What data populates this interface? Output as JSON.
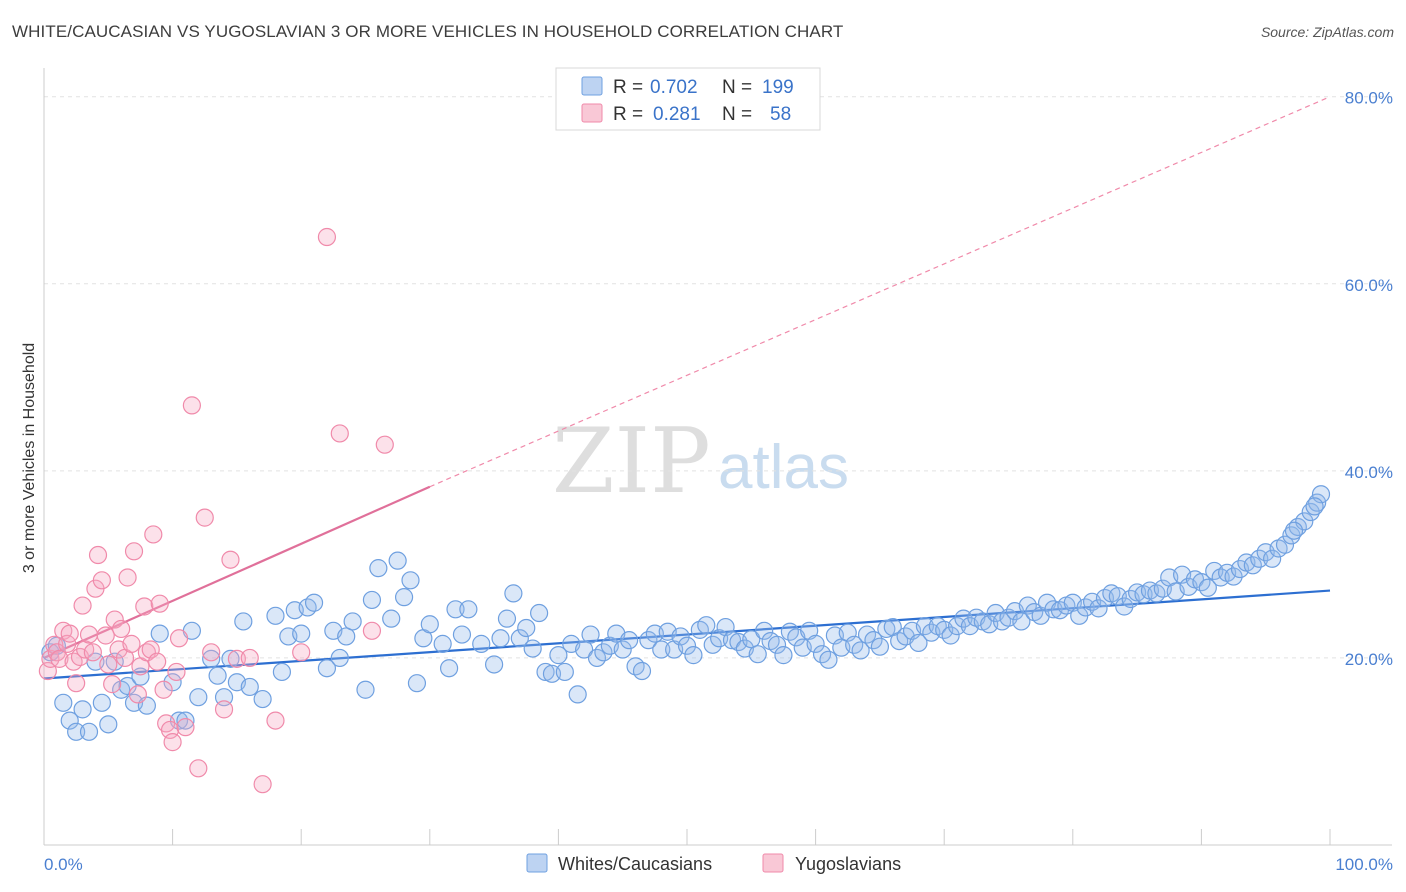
{
  "title": "WHITE/CAUCASIAN VS YUGOSLAVIAN 3 OR MORE VEHICLES IN HOUSEHOLD CORRELATION CHART",
  "source": "Source: ZipAtlas.com",
  "watermark": {
    "zip": "ZIP",
    "atlas": "atlas"
  },
  "legend": {
    "rows": [
      {
        "r_label": "R =",
        "r": "0.702",
        "n_label": "N =",
        "n": "199",
        "color": "#6fa0e0"
      },
      {
        "r_label": "R =",
        "r": "0.281",
        "n_label": "N =",
        "n": "58",
        "color": "#f08aaa"
      }
    ]
  },
  "bottom_legend": [
    {
      "label": "Whites/Caucasians",
      "color": "#6fa0e0"
    },
    {
      "label": "Yugoslavians",
      "color": "#f08aaa"
    }
  ],
  "chart_data": {
    "type": "scatter",
    "title": "WHITE/CAUCASIAN VS YUGOSLAVIAN 3 OR MORE VEHICLES IN HOUSEHOLD CORRELATION CHART",
    "xlabel": "",
    "ylabel": "3 or more Vehicles in Household",
    "xlim": [
      0,
      100
    ],
    "ylim": [
      0,
      82
    ],
    "x_tick_labels": [
      "0.0%",
      "100.0%"
    ],
    "y_ticks": [
      20,
      40,
      60,
      80
    ],
    "y_tick_labels": [
      "20.0%",
      "40.0%",
      "60.0%",
      "80.0%"
    ],
    "grid": true,
    "series": [
      {
        "name": "Whites/Caucasians",
        "color": "#6fa0e0",
        "trend": {
          "x": [
            0,
            100
          ],
          "y": [
            17.8,
            27.2
          ],
          "style": "solid"
        },
        "points": [
          [
            0.5,
            20.6
          ],
          [
            1.0,
            21.3
          ],
          [
            1.5,
            15.2
          ],
          [
            2.0,
            13.3
          ],
          [
            2.5,
            12.1
          ],
          [
            3.0,
            14.5
          ],
          [
            3.5,
            12.1
          ],
          [
            4.0,
            19.6
          ],
          [
            4.5,
            15.2
          ],
          [
            5.0,
            12.9
          ],
          [
            5.5,
            19.6
          ],
          [
            6.0,
            16.6
          ],
          [
            6.5,
            17.0
          ],
          [
            7.0,
            15.2
          ],
          [
            7.5,
            18.0
          ],
          [
            8.0,
            14.9
          ],
          [
            9.0,
            22.6
          ],
          [
            10.0,
            17.4
          ],
          [
            10.5,
            13.3
          ],
          [
            11.0,
            13.3
          ],
          [
            11.5,
            22.9
          ],
          [
            12.0,
            15.8
          ],
          [
            13.0,
            19.9
          ],
          [
            13.5,
            18.1
          ],
          [
            14.0,
            15.8
          ],
          [
            14.5,
            19.9
          ],
          [
            15.0,
            17.4
          ],
          [
            15.5,
            23.9
          ],
          [
            16.0,
            16.9
          ],
          [
            17.0,
            15.6
          ],
          [
            18.0,
            24.5
          ],
          [
            18.5,
            18.5
          ],
          [
            19.0,
            22.3
          ],
          [
            19.5,
            25.1
          ],
          [
            20.0,
            22.6
          ],
          [
            20.5,
            25.4
          ],
          [
            21.0,
            25.9
          ],
          [
            22.0,
            18.9
          ],
          [
            22.5,
            22.9
          ],
          [
            23.0,
            20.0
          ],
          [
            23.5,
            22.3
          ],
          [
            24.0,
            23.9
          ],
          [
            25.0,
            16.6
          ],
          [
            25.5,
            26.2
          ],
          [
            26.0,
            29.6
          ],
          [
            27.0,
            24.2
          ],
          [
            27.5,
            30.4
          ],
          [
            28.0,
            26.5
          ],
          [
            28.5,
            28.3
          ],
          [
            29.0,
            17.3
          ],
          [
            29.5,
            22.1
          ],
          [
            30.0,
            23.6
          ],
          [
            31.0,
            21.5
          ],
          [
            31.5,
            18.9
          ],
          [
            32.0,
            25.2
          ],
          [
            32.5,
            22.5
          ],
          [
            33.0,
            25.2
          ],
          [
            34.0,
            21.5
          ],
          [
            35.0,
            19.3
          ],
          [
            35.5,
            22.1
          ],
          [
            36.0,
            24.2
          ],
          [
            36.5,
            26.9
          ],
          [
            37.0,
            22.1
          ],
          [
            37.5,
            23.2
          ],
          [
            38.0,
            21.0
          ],
          [
            38.5,
            24.8
          ],
          [
            39.0,
            18.5
          ],
          [
            39.5,
            18.3
          ],
          [
            40.0,
            20.3
          ],
          [
            40.5,
            18.5
          ],
          [
            41.0,
            21.5
          ],
          [
            41.5,
            16.1
          ],
          [
            42.0,
            20.9
          ],
          [
            42.5,
            22.5
          ],
          [
            43.0,
            20.0
          ],
          [
            43.5,
            20.6
          ],
          [
            44.0,
            21.3
          ],
          [
            44.5,
            22.6
          ],
          [
            45.0,
            20.9
          ],
          [
            45.5,
            21.9
          ],
          [
            46.0,
            19.1
          ],
          [
            46.5,
            18.6
          ],
          [
            47.0,
            21.9
          ],
          [
            47.5,
            22.6
          ],
          [
            48.0,
            20.9
          ],
          [
            48.5,
            22.8
          ],
          [
            49.0,
            20.9
          ],
          [
            49.5,
            22.3
          ],
          [
            50.0,
            21.3
          ],
          [
            50.5,
            20.3
          ],
          [
            51.0,
            23.0
          ],
          [
            51.5,
            23.5
          ],
          [
            52.0,
            21.4
          ],
          [
            52.5,
            22.1
          ],
          [
            53.0,
            23.3
          ],
          [
            53.5,
            21.9
          ],
          [
            54.0,
            21.7
          ],
          [
            54.5,
            21.0
          ],
          [
            55.0,
            22.0
          ],
          [
            55.5,
            20.4
          ],
          [
            56.0,
            22.9
          ],
          [
            56.5,
            21.8
          ],
          [
            57.0,
            21.4
          ],
          [
            57.5,
            20.3
          ],
          [
            58.0,
            22.8
          ],
          [
            58.5,
            22.2
          ],
          [
            59.0,
            21.1
          ],
          [
            59.5,
            22.9
          ],
          [
            60.0,
            21.5
          ],
          [
            60.5,
            20.4
          ],
          [
            61.0,
            19.8
          ],
          [
            61.5,
            22.4
          ],
          [
            62.0,
            21.1
          ],
          [
            62.5,
            22.7
          ],
          [
            63.0,
            21.4
          ],
          [
            63.5,
            20.8
          ],
          [
            64.0,
            22.5
          ],
          [
            64.5,
            21.9
          ],
          [
            65.0,
            21.2
          ],
          [
            65.5,
            23.1
          ],
          [
            66.0,
            23.3
          ],
          [
            66.5,
            21.8
          ],
          [
            67.0,
            22.3
          ],
          [
            67.5,
            22.9
          ],
          [
            68.0,
            21.6
          ],
          [
            68.5,
            23.4
          ],
          [
            69.0,
            22.7
          ],
          [
            69.5,
            23.4
          ],
          [
            70.0,
            23.0
          ],
          [
            70.5,
            22.4
          ],
          [
            71.0,
            23.4
          ],
          [
            71.5,
            24.2
          ],
          [
            72.0,
            23.4
          ],
          [
            72.5,
            24.3
          ],
          [
            73.0,
            23.9
          ],
          [
            73.5,
            23.6
          ],
          [
            74.0,
            24.8
          ],
          [
            74.5,
            23.9
          ],
          [
            75.0,
            24.3
          ],
          [
            75.5,
            25.0
          ],
          [
            76.0,
            23.9
          ],
          [
            76.5,
            25.6
          ],
          [
            77.0,
            24.9
          ],
          [
            77.5,
            24.5
          ],
          [
            78.0,
            25.9
          ],
          [
            78.5,
            25.2
          ],
          [
            79.0,
            25.1
          ],
          [
            79.5,
            25.6
          ],
          [
            80.0,
            25.9
          ],
          [
            80.5,
            24.5
          ],
          [
            81.0,
            25.4
          ],
          [
            81.5,
            26.0
          ],
          [
            82.0,
            25.3
          ],
          [
            82.5,
            26.4
          ],
          [
            83.0,
            26.9
          ],
          [
            83.5,
            26.6
          ],
          [
            84.0,
            25.5
          ],
          [
            84.5,
            26.3
          ],
          [
            85.0,
            27.0
          ],
          [
            85.5,
            26.8
          ],
          [
            86.0,
            27.2
          ],
          [
            86.5,
            26.9
          ],
          [
            87.0,
            27.4
          ],
          [
            87.5,
            28.6
          ],
          [
            88.0,
            27.1
          ],
          [
            88.5,
            28.9
          ],
          [
            89.0,
            27.6
          ],
          [
            89.5,
            28.4
          ],
          [
            90.0,
            28.1
          ],
          [
            90.5,
            27.5
          ],
          [
            91.0,
            29.3
          ],
          [
            91.5,
            28.6
          ],
          [
            92.0,
            29.1
          ],
          [
            92.5,
            28.7
          ],
          [
            93.0,
            29.5
          ],
          [
            93.5,
            30.2
          ],
          [
            94.0,
            29.9
          ],
          [
            94.5,
            30.6
          ],
          [
            95.0,
            31.3
          ],
          [
            95.5,
            30.6
          ],
          [
            96.0,
            31.7
          ],
          [
            96.5,
            32.1
          ],
          [
            97.0,
            33.1
          ],
          [
            97.5,
            34.0
          ],
          [
            98.0,
            34.6
          ],
          [
            98.5,
            35.6
          ],
          [
            99.0,
            36.6
          ],
          [
            99.3,
            37.5
          ],
          [
            98.8,
            36.2
          ],
          [
            97.2,
            33.6
          ]
        ]
      },
      {
        "name": "Yugoslavians",
        "color": "#f08aaa",
        "trend": {
          "x": [
            0,
            30
          ],
          "y": [
            20.0,
            38.3
          ],
          "style": "solid",
          "extend_to": [
            100,
            80.0
          ],
          "extend_style": "dashed"
        },
        "points": [
          [
            0.3,
            18.6
          ],
          [
            0.5,
            19.9
          ],
          [
            0.8,
            21.4
          ],
          [
            1.0,
            20.6
          ],
          [
            1.2,
            19.9
          ],
          [
            1.5,
            22.9
          ],
          [
            1.8,
            21.5
          ],
          [
            2.0,
            22.6
          ],
          [
            2.3,
            19.6
          ],
          [
            2.5,
            17.3
          ],
          [
            2.8,
            20.1
          ],
          [
            3.0,
            25.6
          ],
          [
            3.2,
            20.9
          ],
          [
            3.5,
            22.5
          ],
          [
            3.8,
            20.6
          ],
          [
            4.0,
            27.4
          ],
          [
            4.2,
            31.0
          ],
          [
            4.5,
            28.3
          ],
          [
            4.8,
            22.4
          ],
          [
            5.0,
            19.3
          ],
          [
            5.3,
            17.2
          ],
          [
            5.5,
            24.1
          ],
          [
            5.8,
            20.9
          ],
          [
            6.0,
            23.1
          ],
          [
            6.3,
            20.0
          ],
          [
            6.5,
            28.6
          ],
          [
            6.8,
            21.5
          ],
          [
            7.0,
            31.4
          ],
          [
            7.3,
            16.1
          ],
          [
            7.5,
            19.1
          ],
          [
            7.8,
            25.5
          ],
          [
            8.0,
            20.6
          ],
          [
            8.3,
            20.9
          ],
          [
            8.5,
            33.2
          ],
          [
            8.8,
            19.6
          ],
          [
            9.0,
            25.8
          ],
          [
            9.3,
            16.6
          ],
          [
            9.5,
            13.0
          ],
          [
            9.8,
            12.3
          ],
          [
            10.0,
            11.0
          ],
          [
            10.3,
            18.5
          ],
          [
            10.5,
            22.1
          ],
          [
            11.0,
            12.6
          ],
          [
            12.0,
            8.2
          ],
          [
            13.0,
            20.6
          ],
          [
            14.0,
            14.5
          ],
          [
            15.0,
            19.9
          ],
          [
            16.0,
            20.0
          ],
          [
            17.0,
            6.5
          ],
          [
            18.0,
            13.3
          ],
          [
            20.0,
            20.6
          ],
          [
            22.0,
            65.0
          ],
          [
            23.0,
            44.0
          ],
          [
            25.5,
            22.9
          ],
          [
            26.5,
            42.8
          ],
          [
            14.5,
            30.5
          ],
          [
            12.5,
            35.0
          ],
          [
            11.5,
            47.0
          ]
        ]
      }
    ]
  }
}
